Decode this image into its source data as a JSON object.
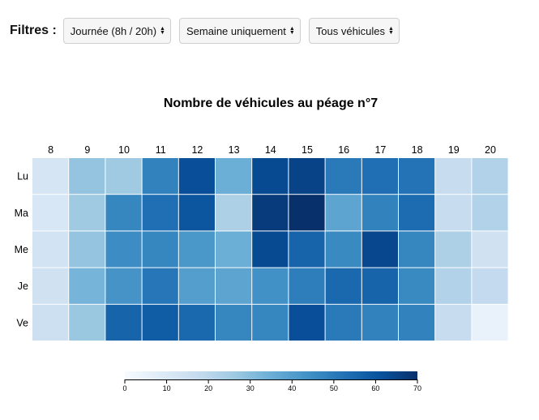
{
  "filters": {
    "label": "Filtres :",
    "period": "Journée (8h / 20h)",
    "days": "Semaine uniquement",
    "vehicles": "Tous véhicules"
  },
  "chart_data": {
    "type": "heatmap",
    "title": "Nombre de véhicules au péage n°7",
    "x": [
      "8",
      "9",
      "10",
      "11",
      "12",
      "13",
      "14",
      "15",
      "16",
      "17",
      "18",
      "19",
      "20"
    ],
    "y": [
      "Lu",
      "Ma",
      "Me",
      "Je",
      "Ve"
    ],
    "values": [
      [
        12,
        28,
        26,
        48,
        62,
        35,
        63,
        65,
        50,
        53,
        52,
        17,
        22
      ],
      [
        11,
        26,
        47,
        53,
        60,
        23,
        67,
        70,
        38,
        48,
        54,
        17,
        22
      ],
      [
        13,
        28,
        45,
        47,
        42,
        35,
        63,
        56,
        46,
        64,
        47,
        23,
        14
      ],
      [
        14,
        33,
        43,
        51,
        40,
        38,
        44,
        49,
        55,
        56,
        46,
        22,
        18
      ],
      [
        15,
        27,
        56,
        58,
        55,
        47,
        47,
        62,
        50,
        48,
        48,
        17,
        5
      ]
    ],
    "color_scale": {
      "min": 0,
      "max": 70,
      "low_color": "#f7fbff",
      "high_color": "#08306b",
      "scheme": "blues"
    },
    "legend": {
      "ticks": [
        0,
        10,
        20,
        30,
        40,
        50,
        60,
        70
      ],
      "placement": "bottom"
    }
  }
}
